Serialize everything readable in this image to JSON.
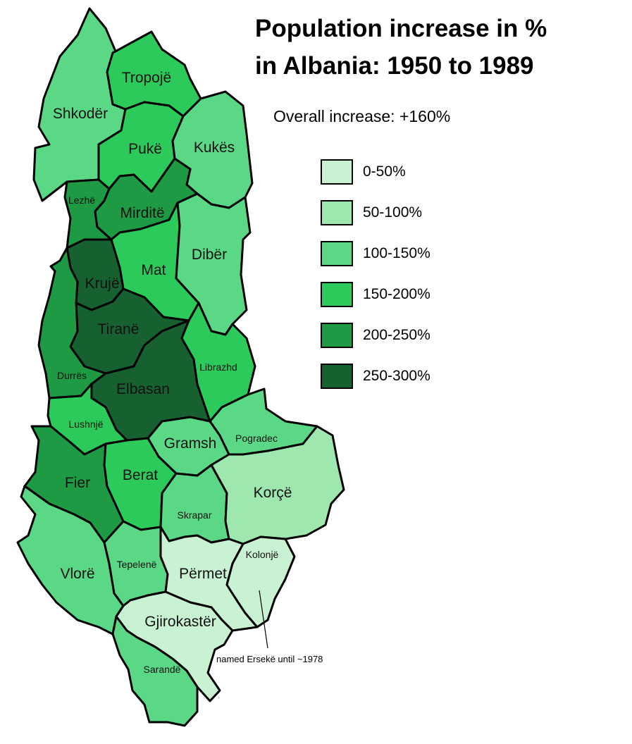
{
  "title_line1": "Population increase in %",
  "title_line2": "in Albania: 1950 to 1989",
  "subtitle": "Overall increase: +160%",
  "legend": [
    {
      "label": "0-50%",
      "color": "#c8f2d2"
    },
    {
      "label": "50-100%",
      "color": "#9ee8b0"
    },
    {
      "label": "100-150%",
      "color": "#5ad886"
    },
    {
      "label": "150-200%",
      "color": "#2cca5a"
    },
    {
      "label": "200-250%",
      "color": "#1f9a44"
    },
    {
      "label": "250-300%",
      "color": "#16612f"
    }
  ],
  "districts": {
    "shkoder": {
      "name": "Shkodër",
      "range": "100-150%"
    },
    "tropoje": {
      "name": "Tropojë",
      "range": "150-200%"
    },
    "puke": {
      "name": "Pukë",
      "range": "150-200%"
    },
    "kukes": {
      "name": "Kukës",
      "range": "100-150%"
    },
    "lezhe": {
      "name": "Lezhë",
      "range": "200-250%"
    },
    "mirdite": {
      "name": "Mirditë",
      "range": "200-250%"
    },
    "mat": {
      "name": "Mat",
      "range": "150-200%"
    },
    "diber": {
      "name": "Dibër",
      "range": "100-150%"
    },
    "kruje": {
      "name": "Krujë",
      "range": "250-300%"
    },
    "tirane": {
      "name": "Tiranë",
      "range": "250-300%"
    },
    "durres": {
      "name": "Durrës",
      "range": "200-250%"
    },
    "elbasan": {
      "name": "Elbasan",
      "range": "250-300%"
    },
    "librazhd": {
      "name": "Librazhd",
      "range": "150-200%"
    },
    "lushnje": {
      "name": "Lushnjë",
      "range": "150-200%"
    },
    "gramsh": {
      "name": "Gramsh",
      "range": "100-150%"
    },
    "pogradec": {
      "name": "Pogradec",
      "range": "100-150%"
    },
    "fier": {
      "name": "Fier",
      "range": "200-250%"
    },
    "berat": {
      "name": "Berat",
      "range": "150-200%"
    },
    "skrapar": {
      "name": "Skrapar",
      "range": "100-150%"
    },
    "korce": {
      "name": "Korçë",
      "range": "50-100%"
    },
    "vlore": {
      "name": "Vlorë",
      "range": "100-150%"
    },
    "tepelene": {
      "name": "Tepelenë",
      "range": "100-150%"
    },
    "permet": {
      "name": "Përmet",
      "range": "0-50%"
    },
    "kolonje": {
      "name": "Kolonjë",
      "range": "0-50%"
    },
    "gjirokaster": {
      "name": "Gjirokastër",
      "range": "0-50%"
    },
    "sarande": {
      "name": "Sarandë",
      "range": "100-150%"
    }
  },
  "annotation": "named Ersekë until ~1978"
}
